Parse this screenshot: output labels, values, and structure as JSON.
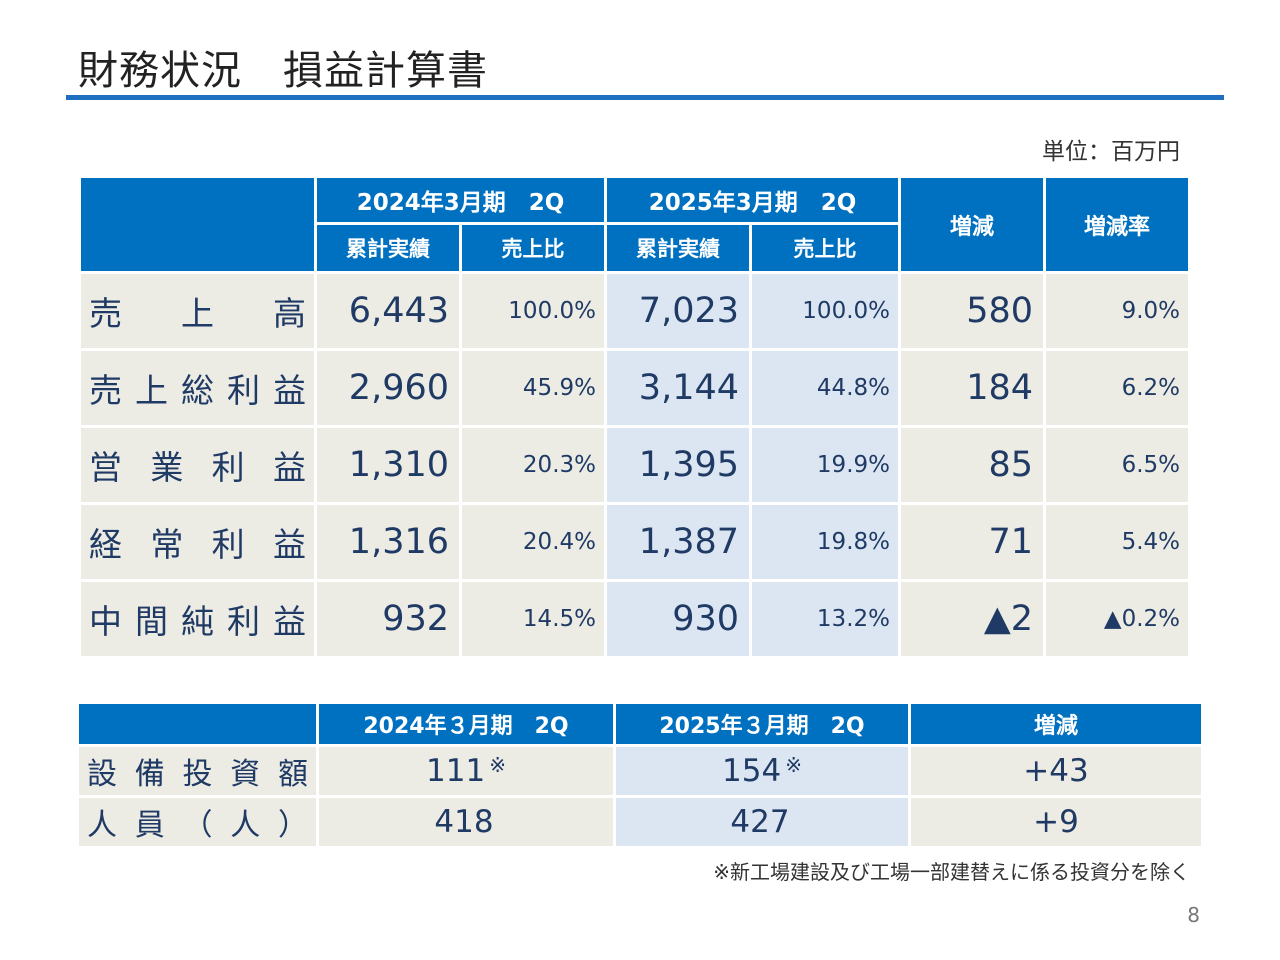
{
  "title": "財務状況　損益計算書",
  "unit": "単位：百万円",
  "main_table": {
    "header": {
      "prev_period": "2024年3月期　2Q",
      "curr_period": "2025年3月期　2Q",
      "change": "増減",
      "change_rate": "増減率",
      "cumulative": "累計実績",
      "ratio": "売上比"
    },
    "rows": [
      {
        "label": [
          "売",
          "上",
          "高"
        ],
        "prev": "6,443",
        "prev_ratio": "100.0%",
        "curr": "7,023",
        "curr_ratio": "100.0%",
        "change": "580",
        "rate": "9.0%"
      },
      {
        "label": [
          "売",
          "上",
          "総",
          "利",
          "益"
        ],
        "prev": "2,960",
        "prev_ratio": "45.9%",
        "curr": "3,144",
        "curr_ratio": "44.8%",
        "change": "184",
        "rate": "6.2%"
      },
      {
        "label": [
          "営",
          "業",
          "利",
          "益"
        ],
        "prev": "1,310",
        "prev_ratio": "20.3%",
        "curr": "1,395",
        "curr_ratio": "19.9%",
        "change": "85",
        "rate": "6.5%"
      },
      {
        "label": [
          "経",
          "常",
          "利",
          "益"
        ],
        "prev": "1,316",
        "prev_ratio": "20.4%",
        "curr": "1,387",
        "curr_ratio": "19.8%",
        "change": "71",
        "rate": "5.4%"
      },
      {
        "label": [
          "中",
          "間",
          "純",
          "利",
          "益"
        ],
        "prev": "932",
        "prev_ratio": "14.5%",
        "curr": "930",
        "curr_ratio": "13.2%",
        "change": "▲2",
        "rate": "▲0.2%"
      }
    ]
  },
  "sub_table": {
    "header": {
      "prev_period": "2024年３月期　2Q",
      "curr_period": "2025年３月期　2Q",
      "change": "増減"
    },
    "rows": [
      {
        "label": [
          "設",
          "備",
          "投",
          "資",
          "額"
        ],
        "prev": "111",
        "prev_mark": "※",
        "curr": "154",
        "curr_mark": "※",
        "change": "+43"
      },
      {
        "label": [
          "人",
          "員",
          "（",
          "人",
          "）"
        ],
        "prev": "418",
        "prev_mark": "",
        "curr": "427",
        "curr_mark": "",
        "change": "+9"
      }
    ]
  },
  "footnote": "※新工場建設及び工場一部建替えに係る投資分を除く",
  "page_number": "8",
  "colors": {
    "header_blue": "#0070c0",
    "rule_blue": "#1f6fc0",
    "cell_beige": "#ecebe4",
    "cell_light_blue": "#dce6f2"
  }
}
